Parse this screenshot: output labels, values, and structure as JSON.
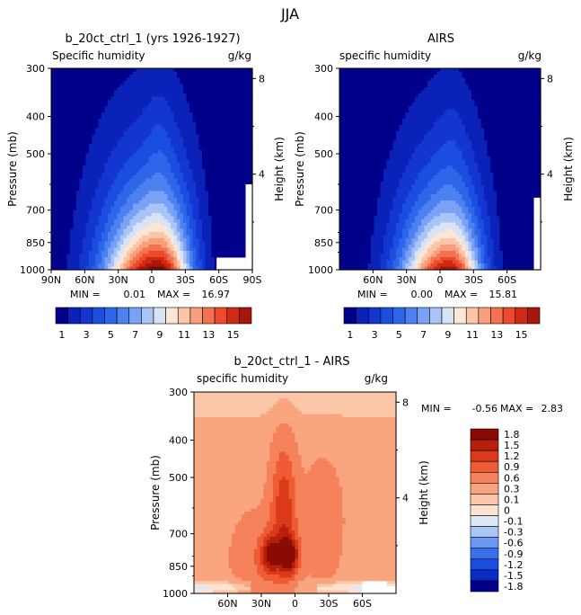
{
  "page_title": "JJA",
  "units": "g/kg",
  "y_label_pressure": "Pressure (mb)",
  "y_label_height": "Height (km)",
  "pressure_ticks": [
    "300",
    "400",
    "500",
    "700",
    "850",
    "1000"
  ],
  "height_ticks": [
    "8",
    "4"
  ],
  "colors": {
    "abs": [
      "#00008b",
      "#0b22b8",
      "#1236cf",
      "#1a4ee0",
      "#2e66ea",
      "#4d80f0",
      "#7aa2f4",
      "#a9c4f6",
      "#d8e4f5",
      "#fde6d5",
      "#fcc5a8",
      "#f89e7c",
      "#f4724f",
      "#ec4a2b",
      "#cf2a14",
      "#a8150a",
      "#7a0a06"
    ],
    "diff": [
      "#00008b",
      "#0b2cc4",
      "#1a4ee0",
      "#3a70ec",
      "#6a98f2",
      "#a8c6f6",
      "#dde9f6",
      "#fde4d2",
      "#fcc7a9",
      "#f9a680",
      "#f5825a",
      "#ee5c35",
      "#db3a1a",
      "#b81e0c",
      "#8a0a05"
    ],
    "mask": "#ffffff"
  },
  "panels": [
    {
      "title": "b_20ct_ctrl_1 (yrs 1926-1927)",
      "subtitle": "Specific humidity",
      "units": "g/kg",
      "x_ticks": [
        "90N",
        "60N",
        "30N",
        "0",
        "30S",
        "60S",
        "90S"
      ],
      "stats": {
        "min_label": "MIN =",
        "min": "0.01",
        "max_label": "MAX =",
        "max": "16.97"
      }
    },
    {
      "title": "AIRS",
      "subtitle": "specific humidity",
      "units": "g/kg",
      "x_ticks": [
        "60N",
        "30N",
        "0",
        "30S",
        "60S"
      ],
      "stats": {
        "min_label": "MIN =",
        "min": "0.00",
        "max_label": "MAX =",
        "max": "15.81"
      }
    },
    {
      "title": "b_20ct_ctrl_1 - AIRS",
      "subtitle": "specific humidity",
      "units": "g/kg",
      "x_ticks": [
        "60N",
        "30N",
        "0",
        "30S",
        "60S"
      ],
      "stats": {
        "min_label": "MIN =",
        "min": "-0.56",
        "max_label": "MAX =",
        "max": "2.83"
      }
    }
  ],
  "colorbar_abs": {
    "labels": [
      "1",
      "3",
      "5",
      "7",
      "9",
      "11",
      "13",
      "15"
    ]
  },
  "colorbar_diff": {
    "labels": [
      "1.8",
      "1.5",
      "1.2",
      "0.9",
      "0.6",
      "0.3",
      "0.1",
      "0",
      "-0.1",
      "-0.3",
      "-0.6",
      "-0.9",
      "-1.2",
      "-1.5",
      "-1.8"
    ]
  },
  "chart_data": [
    {
      "type": "heatmap",
      "title": "b_20ct_ctrl_1 (yrs 1926-1927)",
      "subtitle": "Specific humidity",
      "xlabel": "",
      "ylabel": "Pressure (mb)",
      "ylabel_right": "Height (km)",
      "x_ticks": [
        "90N",
        "60N",
        "30N",
        "0",
        "30S",
        "60S",
        "90S"
      ],
      "y_ticks": [
        300,
        400,
        500,
        700,
        850,
        1000
      ],
      "y_scale": "log-pressure",
      "ylim": [
        1000,
        300
      ],
      "contour_levels": [
        1,
        2,
        3,
        4,
        5,
        6,
        7,
        8,
        9,
        10,
        11,
        12,
        13,
        14,
        15,
        16
      ],
      "min": 0.01,
      "max": 16.97,
      "fields": {
        "mode": "abs",
        "peak_lat": -5,
        "peak": 16.9,
        "north_width": 40,
        "south_width": 25,
        "height_decay": 1.05,
        "bulge_center": -7,
        "bulge_width": 9,
        "bulge_amp": 0.7
      }
    },
    {
      "type": "heatmap",
      "title": "AIRS",
      "subtitle": "specific humidity",
      "xlabel": "",
      "ylabel": "Pressure (mb)",
      "ylabel_right": "Height (km)",
      "x_ticks": [
        "60N",
        "30N",
        "0",
        "30S",
        "60S"
      ],
      "y_ticks": [
        300,
        400,
        500,
        700,
        850,
        1000
      ],
      "y_scale": "log-pressure",
      "ylim": [
        1000,
        300
      ],
      "contour_levels": [
        1,
        2,
        3,
        4,
        5,
        6,
        7,
        8,
        9,
        10,
        11,
        12,
        13,
        14,
        15,
        16
      ],
      "min": 0.0,
      "max": 15.81,
      "fields": {
        "mode": "abs",
        "peak_lat": -8,
        "peak": 15.8,
        "north_width": 36,
        "south_width": 24,
        "height_decay": 1.1,
        "bulge_center": -10,
        "bulge_width": 10,
        "bulge_amp": 0.55
      }
    },
    {
      "type": "heatmap",
      "title": "b_20ct_ctrl_1 - AIRS",
      "subtitle": "specific humidity",
      "xlabel": "",
      "ylabel": "Pressure (mb)",
      "ylabel_right": "Height (km)",
      "x_ticks": [
        "60N",
        "30N",
        "0",
        "30S",
        "60S"
      ],
      "y_ticks": [
        300,
        400,
        500,
        700,
        850,
        1000
      ],
      "y_scale": "log-pressure",
      "ylim": [
        1000,
        300
      ],
      "contour_levels": [
        -1.8,
        -1.5,
        -1.2,
        -0.9,
        -0.6,
        -0.3,
        -0.1,
        0,
        0.1,
        0.3,
        0.6,
        0.9,
        1.2,
        1.5,
        1.8
      ],
      "min": -0.56,
      "max": 2.83,
      "fields": {
        "mode": "diff"
      }
    }
  ]
}
